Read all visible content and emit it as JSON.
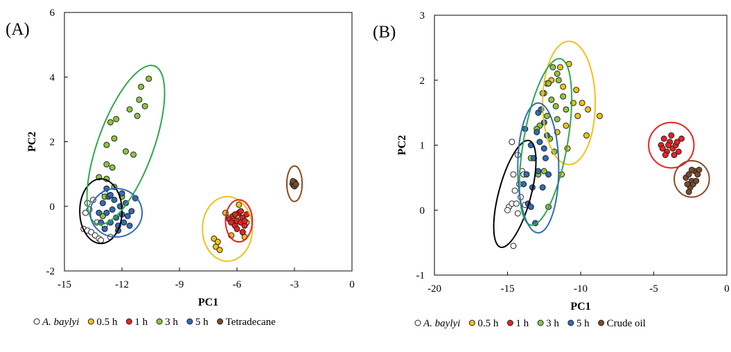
{
  "figure": {
    "panel_labels": [
      "(A)",
      "(B)"
    ]
  },
  "chart_data": [
    {
      "panel": "(A)",
      "type": "scatter",
      "xlabel": "PC1",
      "ylabel": "PC2",
      "xlim": [
        -15,
        0
      ],
      "ylim": [
        -2,
        6
      ],
      "xticks": [
        -15,
        -12,
        -9,
        -6,
        -3,
        0
      ],
      "yticks": [
        -2,
        0,
        2,
        4,
        6
      ],
      "xtick_labels": [
        "-15",
        "-12",
        "-9",
        "-6",
        "-3",
        "0"
      ],
      "ytick_labels": [
        "-2",
        "0",
        "2",
        "4",
        "6"
      ],
      "grid": false,
      "legend_position": "bottom",
      "series": [
        {
          "name": "A. baylyi",
          "italic": true,
          "color": "#ffffff",
          "points": [
            [
              -14.0,
              -0.7
            ],
            [
              -13.9,
              -0.2
            ],
            [
              -13.8,
              -0.75
            ],
            [
              -13.7,
              -0.1
            ],
            [
              -13.6,
              -0.8
            ],
            [
              -13.5,
              0.2
            ],
            [
              -13.4,
              -0.9
            ],
            [
              -13.3,
              -0.5
            ],
            [
              -13.2,
              -1.0
            ],
            [
              -13.1,
              -1.05
            ],
            [
              -12.9,
              0.4
            ],
            [
              -12.6,
              -0.95
            ],
            [
              -13.8,
              0.1
            ],
            [
              -13.0,
              -0.3
            ],
            [
              -12.9,
              -0.6
            ]
          ],
          "ellipse": {
            "cx": -13.1,
            "cy": -0.15,
            "rx": 1.1,
            "ry": 1.0,
            "angle": 0,
            "color": "#000000"
          }
        },
        {
          "name": "0.5 h",
          "italic": false,
          "color": "#f2c018",
          "points": [
            [
              -7.2,
              -1.0
            ],
            [
              -7.1,
              -1.25
            ],
            [
              -7.0,
              -1.1
            ],
            [
              -6.9,
              -1.35
            ],
            [
              -6.6,
              -0.2
            ],
            [
              -6.4,
              -0.35
            ],
            [
              -6.2,
              -0.5
            ],
            [
              -6.0,
              -0.3
            ],
            [
              -5.7,
              -0.8
            ],
            [
              -5.5,
              -0.5
            ],
            [
              -5.9,
              0.05
            ],
            [
              -5.6,
              -0.95
            ],
            [
              -6.3,
              -0.9
            ]
          ],
          "ellipse": {
            "cx": -6.5,
            "cy": -0.7,
            "rx": 1.3,
            "ry": 1.0,
            "angle": 0,
            "color": "#f2c018"
          }
        },
        {
          "name": "1 h",
          "italic": false,
          "color": "#e8221f",
          "points": [
            [
              -6.4,
              -0.4
            ],
            [
              -6.3,
              -0.5
            ],
            [
              -6.2,
              -0.3
            ],
            [
              -6.1,
              -0.6
            ],
            [
              -6.0,
              -0.45
            ],
            [
              -5.9,
              -0.2
            ],
            [
              -5.8,
              -0.5
            ],
            [
              -5.7,
              -0.35
            ],
            [
              -5.6,
              -0.6
            ],
            [
              -5.5,
              -0.25
            ],
            [
              -6.0,
              -0.7
            ],
            [
              -5.8,
              -0.15
            ],
            [
              -5.6,
              -0.45
            ],
            [
              -6.1,
              -0.25
            ],
            [
              -5.7,
              -0.8
            ]
          ],
          "ellipse": {
            "cx": -5.9,
            "cy": -0.45,
            "rx": 0.7,
            "ry": 0.65,
            "angle": 0,
            "color": "#e8221f"
          }
        },
        {
          "name": "3 h",
          "italic": false,
          "color": "#8cc63e",
          "points": [
            [
              -10.6,
              3.95
            ],
            [
              -11.0,
              3.7
            ],
            [
              -11.1,
              3.3
            ],
            [
              -10.8,
              3.1
            ],
            [
              -11.2,
              2.8
            ],
            [
              -11.6,
              3.0
            ],
            [
              -11.4,
              1.6
            ],
            [
              -11.8,
              1.7
            ],
            [
              -12.3,
              2.7
            ],
            [
              -12.6,
              2.6
            ],
            [
              -12.4,
              2.1
            ],
            [
              -12.8,
              1.9
            ],
            [
              -12.8,
              1.3
            ],
            [
              -12.5,
              1.2
            ],
            [
              -12.8,
              0.85
            ],
            [
              -13.2,
              0.9
            ],
            [
              -12.4,
              0.6
            ],
            [
              -12.0,
              0.3
            ],
            [
              -12.9,
              0.3
            ],
            [
              -13.0,
              -0.3
            ]
          ],
          "ellipse": {
            "cx": -11.8,
            "cy": 1.9,
            "rx": 1.45,
            "ry": 2.6,
            "angle": 20,
            "color": "#2ea84a"
          }
        },
        {
          "name": "5 h",
          "italic": false,
          "color": "#2e6cb5",
          "points": [
            [
              -13.0,
              0.1
            ],
            [
              -12.8,
              -0.2
            ],
            [
              -12.7,
              0.3
            ],
            [
              -12.6,
              -0.5
            ],
            [
              -12.5,
              -0.1
            ],
            [
              -12.4,
              0.2
            ],
            [
              -12.3,
              -0.35
            ],
            [
              -12.2,
              -0.6
            ],
            [
              -12.1,
              0.0
            ],
            [
              -12.0,
              -0.25
            ],
            [
              -11.9,
              -0.5
            ],
            [
              -11.8,
              0.1
            ],
            [
              -11.7,
              -0.3
            ],
            [
              -11.5,
              -0.15
            ],
            [
              -11.3,
              0.25
            ],
            [
              -13.1,
              -0.5
            ],
            [
              -12.9,
              -0.7
            ],
            [
              -12.6,
              0.35
            ],
            [
              -13.2,
              -0.2
            ],
            [
              -12.2,
              -0.75
            ],
            [
              -12.8,
              0.55
            ],
            [
              -11.6,
              -0.6
            ],
            [
              -12.0,
              0.4
            ]
          ],
          "ellipse": {
            "cx": -12.3,
            "cy": -0.2,
            "rx": 1.35,
            "ry": 0.75,
            "angle": 0,
            "color": "#2e6cb5"
          }
        },
        {
          "name": "Tetradecane",
          "italic": false,
          "color": "#7b4a2c",
          "points": [
            [
              -3.1,
              0.7
            ],
            [
              -3.05,
              0.65
            ],
            [
              -3.0,
              0.75
            ],
            [
              -2.95,
              0.7
            ],
            [
              -3.0,
              0.62
            ],
            [
              -3.08,
              0.78
            ],
            [
              -2.92,
              0.68
            ]
          ],
          "ellipse": {
            "cx": -3.0,
            "cy": 0.7,
            "rx": 0.4,
            "ry": 0.55,
            "angle": 0,
            "color": "#8b4a22"
          }
        }
      ]
    },
    {
      "panel": "(B)",
      "type": "scatter",
      "xlabel": "PC1",
      "ylabel": "PC2",
      "xlim": [
        -20,
        0
      ],
      "ylim": [
        -1,
        3
      ],
      "xticks": [
        -20,
        -15,
        -10,
        -5,
        0
      ],
      "yticks": [
        -1,
        0,
        1,
        2,
        3
      ],
      "xtick_labels": [
        "-20",
        "-15",
        "-10",
        "-5",
        "0"
      ],
      "ytick_labels": [
        "-1",
        "0",
        "1",
        "2",
        "3"
      ],
      "grid": false,
      "legend_position": "bottom",
      "series": [
        {
          "name": "A. baylyi",
          "italic": true,
          "color": "#ffffff",
          "points": [
            [
              -14.6,
              -0.55
            ],
            [
              -14.9,
              0.05
            ],
            [
              -15.0,
              0.0
            ],
            [
              -14.7,
              0.1
            ],
            [
              -14.5,
              0.3
            ],
            [
              -14.6,
              0.55
            ],
            [
              -14.3,
              0.85
            ],
            [
              -14.2,
              0.4
            ],
            [
              -14.0,
              0.6
            ],
            [
              -13.9,
              0.55
            ],
            [
              -13.8,
              0.08
            ],
            [
              -14.4,
              0.1
            ],
            [
              -14.7,
              1.05
            ],
            [
              -14.1,
              0.2
            ],
            [
              -14.3,
              -0.05
            ]
          ],
          "ellipse": {
            "cx": -14.5,
            "cy": 0.25,
            "rx": 1.1,
            "ry": 0.85,
            "angle": 15,
            "color": "#000000"
          }
        },
        {
          "name": "0.5 h",
          "italic": false,
          "color": "#f2c018",
          "points": [
            [
              -10.8,
              2.25
            ],
            [
              -11.4,
              2.2
            ],
            [
              -12.0,
              2.0
            ],
            [
              -12.3,
              1.95
            ],
            [
              -12.5,
              1.8
            ],
            [
              -11.2,
              1.9
            ],
            [
              -10.5,
              1.65
            ],
            [
              -9.9,
              1.65
            ],
            [
              -10.2,
              1.45
            ],
            [
              -8.7,
              1.45
            ],
            [
              -9.5,
              1.55
            ],
            [
              -11.0,
              1.3
            ],
            [
              -9.6,
              1.15
            ],
            [
              -11.6,
              1.2
            ],
            [
              -10.9,
              0.95
            ],
            [
              -12.0,
              1.7
            ],
            [
              -10.3,
              1.85
            ],
            [
              -11.3,
              0.55
            ]
          ],
          "ellipse": {
            "cx": -10.8,
            "cy": 1.65,
            "rx": 1.8,
            "ry": 0.95,
            "angle": 0,
            "color": "#f2c018"
          }
        },
        {
          "name": "1 h",
          "italic": false,
          "color": "#e8221f",
          "points": [
            [
              -4.5,
              1.0
            ],
            [
              -4.3,
              1.1
            ],
            [
              -4.1,
              0.9
            ],
            [
              -3.9,
              1.05
            ],
            [
              -3.7,
              0.95
            ],
            [
              -3.5,
              1.0
            ],
            [
              -3.3,
              0.9
            ],
            [
              -3.1,
              1.1
            ],
            [
              -4.2,
              0.85
            ],
            [
              -3.8,
              1.15
            ],
            [
              -4.4,
              0.95
            ],
            [
              -3.6,
              0.85
            ],
            [
              -4.0,
              1.0
            ],
            [
              -3.4,
              1.05
            ]
          ],
          "ellipse": {
            "cx": -3.8,
            "cy": 1.0,
            "rx": 1.55,
            "ry": 0.35,
            "angle": 0,
            "color": "#e8221f"
          }
        },
        {
          "name": "3 h",
          "italic": false,
          "color": "#8cc63e",
          "points": [
            [
              -11.9,
              2.2
            ],
            [
              -11.6,
              2.1
            ],
            [
              -11.5,
              2.0
            ],
            [
              -12.2,
              1.95
            ],
            [
              -12.6,
              1.8
            ],
            [
              -12.0,
              1.7
            ],
            [
              -11.2,
              1.75
            ],
            [
              -11.7,
              1.6
            ],
            [
              -12.3,
              1.45
            ],
            [
              -11.0,
              1.55
            ],
            [
              -12.8,
              1.3
            ],
            [
              -12.1,
              1.1
            ],
            [
              -11.8,
              0.9
            ],
            [
              -12.5,
              0.6
            ],
            [
              -12.9,
              0.55
            ],
            [
              -12.2,
              0.05
            ],
            [
              -13.4,
              0.8
            ],
            [
              -11.6,
              1.4
            ],
            [
              -13.0,
              1.25
            ]
          ],
          "ellipse": {
            "cx": -12.4,
            "cy": 1.05,
            "rx": 1.5,
            "ry": 1.3,
            "angle": 10,
            "color": "#2ea84a"
          }
        },
        {
          "name": "5 h",
          "italic": false,
          "color": "#2e6cb5",
          "points": [
            [
              -13.8,
              1.25
            ],
            [
              -13.4,
              1.0
            ],
            [
              -13.2,
              0.8
            ],
            [
              -13.0,
              1.2
            ],
            [
              -12.9,
              1.5
            ],
            [
              -12.7,
              1.55
            ],
            [
              -12.5,
              1.35
            ],
            [
              -12.3,
              1.15
            ],
            [
              -12.5,
              0.95
            ],
            [
              -12.9,
              0.6
            ],
            [
              -13.3,
              0.35
            ],
            [
              -13.6,
              0.1
            ],
            [
              -13.4,
              0.05
            ],
            [
              -13.1,
              -0.2
            ],
            [
              -12.4,
              0.8
            ],
            [
              -13.7,
              0.55
            ],
            [
              -12.6,
              0.35
            ],
            [
              -13.9,
              0.4
            ],
            [
              -12.2,
              0.55
            ],
            [
              -12.8,
              1.05
            ]
          ],
          "ellipse": {
            "cx": -12.9,
            "cy": 0.65,
            "rx": 1.4,
            "ry": 1.0,
            "angle": 0,
            "color": "#2e6cb5"
          }
        },
        {
          "name": "Crude oil",
          "italic": false,
          "color": "#7b4a2c",
          "points": [
            [
              -2.8,
              0.5
            ],
            [
              -2.6,
              0.55
            ],
            [
              -2.4,
              0.45
            ],
            [
              -2.2,
              0.6
            ],
            [
              -2.0,
              0.55
            ],
            [
              -2.5,
              0.35
            ],
            [
              -2.3,
              0.4
            ],
            [
              -2.1,
              0.45
            ],
            [
              -2.7,
              0.4
            ],
            [
              -2.4,
              0.62
            ],
            [
              -1.9,
              0.62
            ],
            [
              -2.6,
              0.28
            ]
          ],
          "ellipse": {
            "cx": -2.4,
            "cy": 0.48,
            "rx": 1.2,
            "ry": 0.28,
            "angle": 0,
            "color": "#8b4a22"
          }
        }
      ]
    }
  ]
}
